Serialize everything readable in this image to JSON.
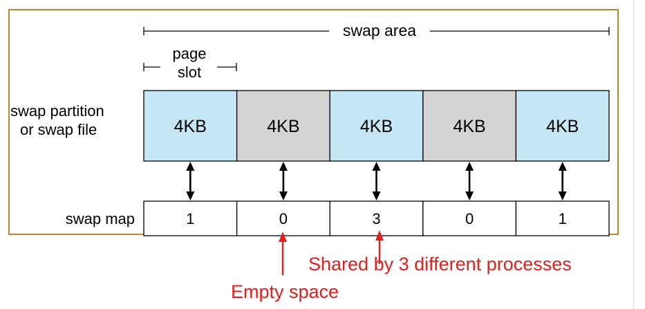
{
  "diagram": {
    "swap_area_label": "swap area",
    "page_slot_label_line1": "page",
    "page_slot_label_line2": "slot",
    "partition_label_line1": "swap partition",
    "partition_label_line2": "or swap file",
    "swap_map_label": "swap map",
    "slots": [
      {
        "size": "4KB",
        "map_value": "1",
        "fill": "#c5e6f5"
      },
      {
        "size": "4KB",
        "map_value": "0",
        "fill": "#d4d4d4"
      },
      {
        "size": "4KB",
        "map_value": "3",
        "fill": "#c5e6f5"
      },
      {
        "size": "4KB",
        "map_value": "0",
        "fill": "#d4d4d4"
      },
      {
        "size": "4KB",
        "map_value": "1",
        "fill": "#c5e6f5"
      }
    ]
  },
  "annotations": {
    "shared_label": "Shared by 3 different processes",
    "empty_label": "Empty space",
    "color": "#e0201c"
  }
}
